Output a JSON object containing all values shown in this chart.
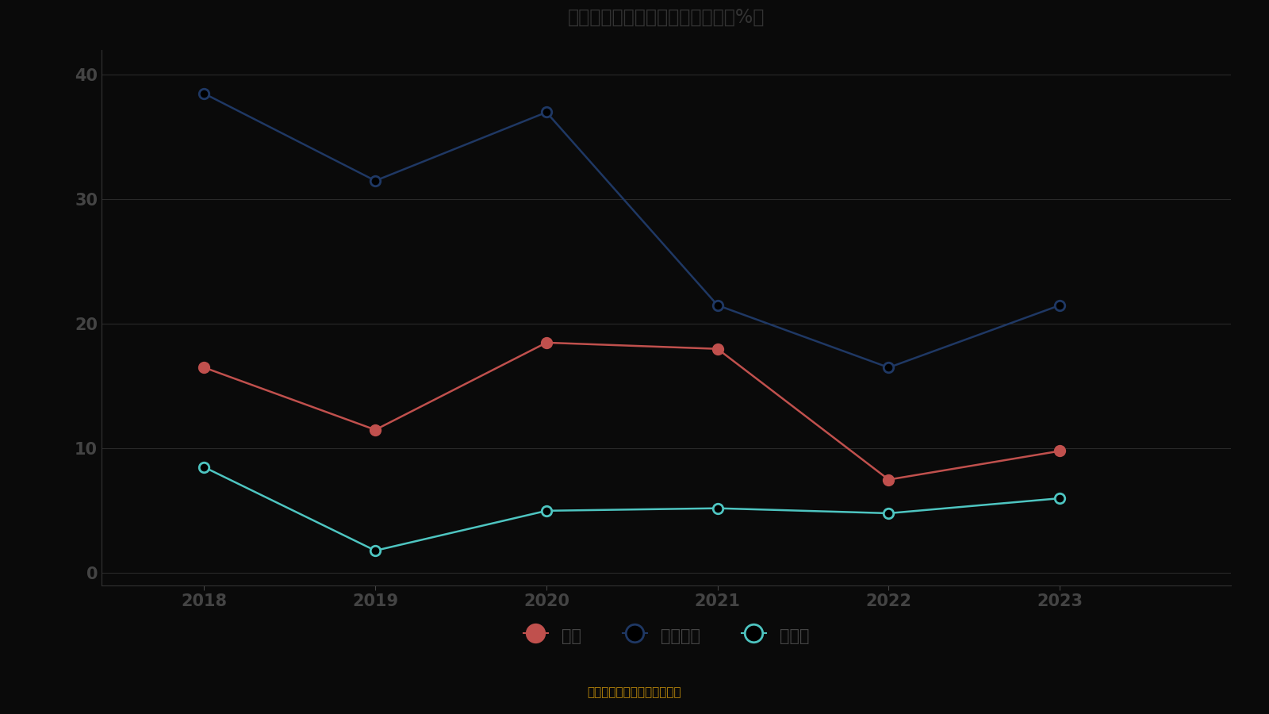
{
  "title": "近年来部分主要产品毛利率情况（%）",
  "years": [
    2018,
    2019,
    2020,
    2021,
    2022,
    2023
  ],
  "series": [
    {
      "name": "炭黑",
      "values": [
        16.5,
        11.5,
        18.5,
        18.0,
        7.5,
        9.8
      ],
      "color": "#c0504d",
      "marker": "o",
      "marker_face": "#c0504d",
      "marker_edge": "#c0504d"
    },
    {
      "name": "二氧化硅",
      "values": [
        38.5,
        31.5,
        37.0,
        21.5,
        16.5,
        21.5
      ],
      "color": "#1f3864",
      "marker": "o",
      "marker_face": "#000000",
      "marker_edge": "#1f3864"
    },
    {
      "name": "硅酸钠",
      "values": [
        8.5,
        1.8,
        5.0,
        5.2,
        4.8,
        6.0
      ],
      "color": "#4ec5c1",
      "marker": "o",
      "marker_face": "#000000",
      "marker_edge": "#4ec5c1"
    }
  ],
  "ylim": [
    -1,
    42
  ],
  "yticks": [
    0,
    10,
    20,
    30,
    40
  ],
  "background_color": "#0a0a0a",
  "plot_bg_color": "#0a0a0a",
  "grid_color": "#2a2a2a",
  "tick_color": "#555555",
  "text_color": "#444444",
  "title_color": "#333333",
  "subtitle": "制图数据来自恒生聚源数据库",
  "subtitle_color": "#b8860b",
  "xlim_left": 2017.4,
  "xlim_right": 2024.0
}
